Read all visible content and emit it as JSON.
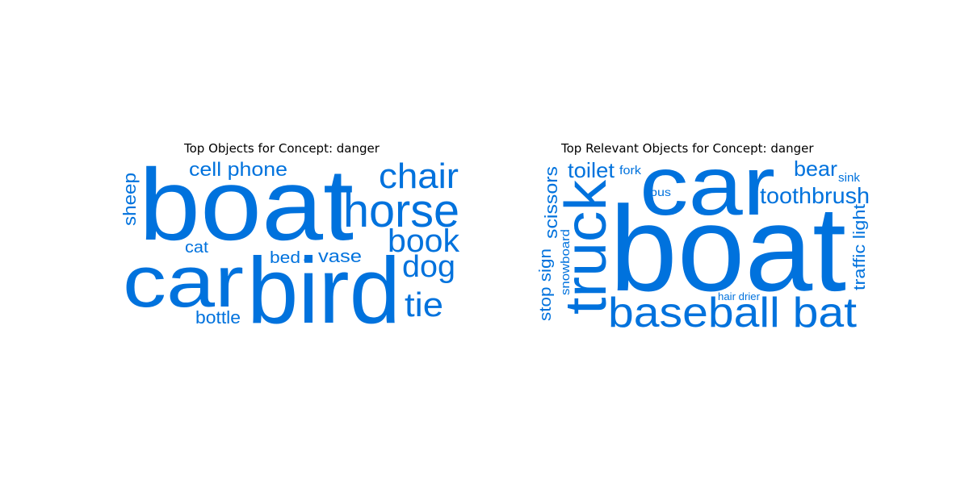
{
  "color": "#0072dd",
  "clouds": [
    {
      "title": "Top Objects for Concept: danger",
      "words": [
        "boat",
        "car",
        "bird",
        "horse",
        "chair",
        "cell phone",
        "book",
        "dog",
        "sheep",
        "cat",
        "bed",
        "vase",
        "tie",
        "bottle",
        "."
      ]
    },
    {
      "title": "Top Relevant Objects for Concept: danger",
      "words": [
        "boat",
        "car",
        "truck",
        "baseball bat",
        "toilet",
        "fork",
        "bear",
        "sink",
        "toothbrush",
        "bus",
        "scissors",
        "traffic light",
        "stop sign",
        "snowboard",
        "hair drier"
      ]
    }
  ]
}
